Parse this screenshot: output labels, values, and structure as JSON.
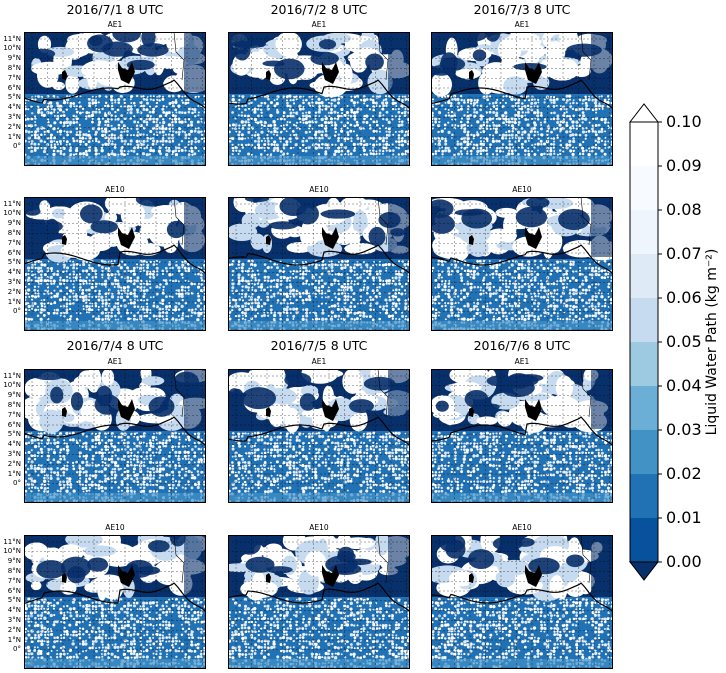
{
  "figure": {
    "date_titles": [
      "2016/7/1   8 UTC",
      "2016/7/2   8 UTC",
      "2016/7/3   8 UTC",
      "2016/7/4   8 UTC",
      "2016/7/5   8 UTC",
      "2016/7/6   8 UTC"
    ],
    "lat_labels": [
      "11°N",
      "10°N",
      "9°N",
      "8°N",
      "7°N",
      "6°N",
      "5°N",
      "4°N",
      "3°N",
      "2°N",
      "1°N",
      "0°"
    ],
    "colorbar": {
      "label": "Liquid Water Path (kg m⁻²)",
      "ticks": [
        "0.10",
        "0.09",
        "0.08",
        "0.07",
        "0.06",
        "0.05",
        "0.04",
        "0.03",
        "0.02",
        "0.01",
        "0.00"
      ],
      "colors": [
        "#08306b",
        "#08519c",
        "#2171b5",
        "#4292c6",
        "#6baed6",
        "#9ecae1",
        "#c6dbef",
        "#deebf7",
        "#eef5fc",
        "#f7fbff",
        "#ffffff"
      ],
      "extend": "both"
    }
  },
  "chart_data": {
    "type": "heatmap",
    "variable": "Liquid Water Path",
    "units": "kg m-2",
    "vmin": 0.0,
    "vmax": 0.1,
    "colormap": "Blues_r",
    "lat_range": [
      0,
      11
    ],
    "panels": [
      {
        "date": "2016/7/1   8 UTC",
        "run": "AE1"
      },
      {
        "date": "2016/7/2   8 UTC",
        "run": "AE1"
      },
      {
        "date": "2016/7/3   8 UTC",
        "run": "AE1"
      },
      {
        "date": "2016/7/1   8 UTC",
        "run": "AE10"
      },
      {
        "date": "2016/7/2   8 UTC",
        "run": "AE10"
      },
      {
        "date": "2016/7/3   8 UTC",
        "run": "AE10"
      },
      {
        "date": "2016/7/4   8 UTC",
        "run": "AE1"
      },
      {
        "date": "2016/7/5   8 UTC",
        "run": "AE1"
      },
      {
        "date": "2016/7/6   8 UTC",
        "run": "AE1"
      },
      {
        "date": "2016/7/4   8 UTC",
        "run": "AE10"
      },
      {
        "date": "2016/7/5   8 UTC",
        "run": "AE10"
      },
      {
        "date": "2016/7/6   8 UTC",
        "run": "AE10"
      }
    ]
  }
}
